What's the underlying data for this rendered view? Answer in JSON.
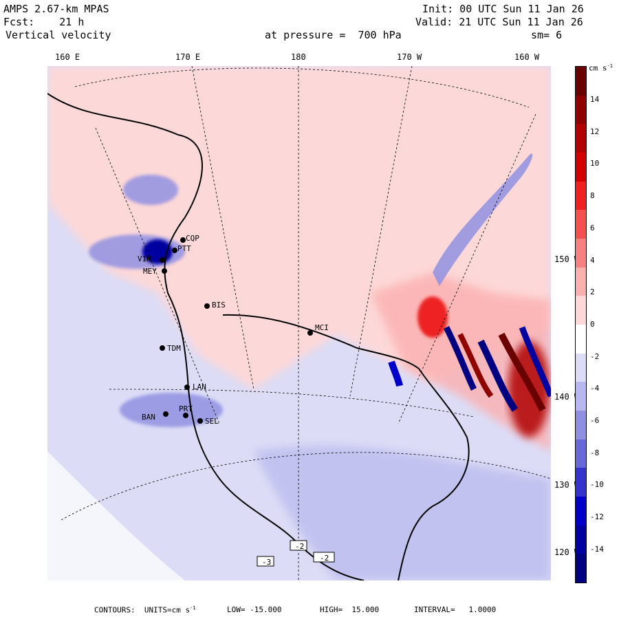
{
  "header": {
    "model": "AMPS 2.67-km MPAS",
    "forecast": "Fcst:    21 h",
    "field": "Vertical velocity",
    "init": "Init: 00 UTC Sun 11 Jan 26",
    "valid": "Valid: 21 UTC Sun 11 Jan 26",
    "pressure": "at pressure =  700 hPa",
    "smoothing": "sm= 6"
  },
  "longitude_labels": [
    "160 E",
    "170 E",
    "180",
    "170 W",
    "160 W"
  ],
  "latitude_labels": [
    "150 W",
    "140 W",
    "130 W",
    "120 W"
  ],
  "stations": [
    "CQP",
    "PTT",
    "VIN",
    "MEY",
    "BIS",
    "MCI",
    "TDM",
    "LAN",
    "BAN",
    "PRT",
    "SEL"
  ],
  "boxed_values": [
    "-3",
    "-2",
    "-2"
  ],
  "colorbar": {
    "units": "cm s",
    "units_exp": "-1",
    "ticks": [
      "14",
      "12",
      "10",
      "8",
      "6",
      "4",
      "2",
      "0",
      "-2",
      "-4",
      "-6",
      "-8",
      "-10",
      "-12",
      "-14"
    ],
    "colors": [
      "#6b0000",
      "#8f0000",
      "#b00000",
      "#d40000",
      "#ee2020",
      "#f45050",
      "#f88080",
      "#fbb0b0",
      "#fdd8d8",
      "#ffffff",
      "#dcdcf6",
      "#b8b8ee",
      "#9090e2",
      "#6868d8",
      "#3434cc",
      "#0000c8",
      "#0000a0",
      "#000080"
    ]
  },
  "footer": {
    "contours": "CONTOURS:  UNITS=cm s",
    "units_exp": "-1",
    "low": "LOW= -15.000",
    "high": "HIGH=  15.000",
    "interval": "INTERVAL=   1.0000"
  }
}
